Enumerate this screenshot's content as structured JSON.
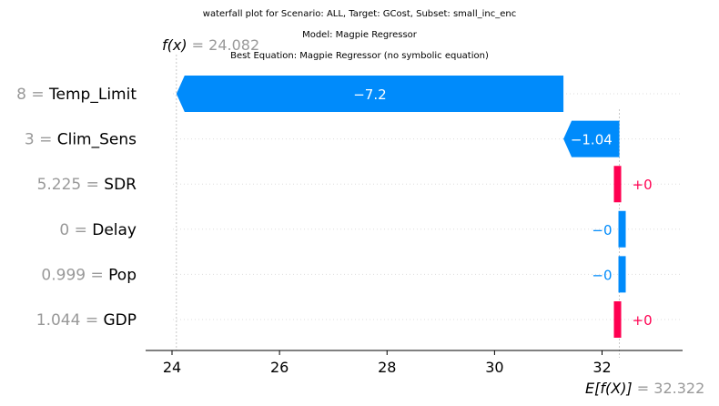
{
  "titles": [
    "waterfall plot for Scenario: ALL, Target: GCost, Subset: small_inc_enc",
    "Model: Magpie Regressor",
    "Best Equation: Magpie Regressor (no symbolic equation)"
  ],
  "colors": {
    "negative": "#008bfb",
    "positive": "#ff0051",
    "value_text": "#999999",
    "label_text": "#000000"
  },
  "chart_data": {
    "type": "waterfall",
    "fx": {
      "label": "f(x)",
      "value_text": "= 24.082",
      "value": 24.082
    },
    "base": {
      "label": "E[f(X)]",
      "value_text": "= 32.322",
      "value": 32.322
    },
    "features": [
      {
        "value_text": "8",
        "name": "Temp_Limit",
        "shap": -7.2,
        "shap_label": "−7.2"
      },
      {
        "value_text": "3",
        "name": "Clim_Sens",
        "shap": -1.04,
        "shap_label": "−1.04"
      },
      {
        "value_text": "5.225",
        "name": "SDR",
        "shap": 0.05,
        "shap_label": "+0"
      },
      {
        "value_text": "0",
        "name": "Delay",
        "shap": -0.05,
        "shap_label": "−0"
      },
      {
        "value_text": "0.999",
        "name": "Pop",
        "shap": -0.05,
        "shap_label": "−0"
      },
      {
        "value_text": "1.044",
        "name": "GDP",
        "shap": 0.05,
        "shap_label": "+0"
      }
    ],
    "xticks": [
      24,
      26,
      28,
      30,
      32
    ],
    "xlim": [
      23.5,
      33.5
    ],
    "grid": false
  }
}
